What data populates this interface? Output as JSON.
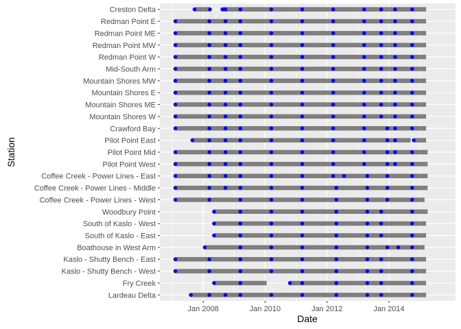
{
  "chart_data": {
    "type": "timeline",
    "xlabel": "Date",
    "ylabel": "Station",
    "x_ticks": [
      "Jan 2008",
      "Jan 2010",
      "Jan 2012",
      "Jan 2014"
    ],
    "x_tick_values": [
      2008.0,
      2010.0,
      2012.0,
      2014.0
    ],
    "xlim": [
      2006.6,
      2016.15
    ],
    "grid": true,
    "legend": "none",
    "colors": {
      "panel": "#ebebeb",
      "grid": "#ffffff",
      "segment": "#7f7f7f",
      "point": "#0000ff",
      "tick": "#4d4d4d"
    },
    "stations": [
      {
        "name": "Creston Delta",
        "segments": [
          [
            2007.72,
            2008.22
          ],
          [
            2008.62,
            2015.2
          ]
        ],
        "points": [
          2007.72,
          2008.22,
          2008.62,
          2008.72,
          2009.2,
          2010.2,
          2011.2,
          2012.2,
          2013.2,
          2013.75,
          2014.2,
          2014.75
        ]
      },
      {
        "name": "Redman Point E",
        "segments": [
          [
            2007.1,
            2015.2
          ]
        ],
        "points": [
          2007.1,
          2008.2,
          2008.72,
          2009.2,
          2010.2,
          2011.2,
          2012.2,
          2013.2,
          2013.75,
          2014.2,
          2014.75
        ]
      },
      {
        "name": "Redman Point ME",
        "segments": [
          [
            2007.1,
            2015.2
          ]
        ],
        "points": [
          2007.1,
          2008.2,
          2008.72,
          2009.2,
          2010.2,
          2011.2,
          2012.2,
          2013.2,
          2013.75,
          2014.2,
          2014.75
        ]
      },
      {
        "name": "Redman Point MW",
        "segments": [
          [
            2007.1,
            2015.2
          ]
        ],
        "points": [
          2007.1,
          2008.2,
          2008.72,
          2009.2,
          2010.2,
          2011.2,
          2012.2,
          2013.2,
          2013.75,
          2014.2,
          2014.75
        ]
      },
      {
        "name": "Redman Point W",
        "segments": [
          [
            2007.1,
            2015.2
          ]
        ],
        "points": [
          2007.1,
          2008.2,
          2008.72,
          2009.2,
          2010.2,
          2011.2,
          2012.2,
          2013.2,
          2013.75,
          2014.2,
          2014.75
        ]
      },
      {
        "name": "Mid-South Arm",
        "segments": [
          [
            2007.1,
            2015.2
          ]
        ],
        "points": [
          2007.1,
          2008.2,
          2008.72,
          2009.2,
          2010.2,
          2011.2,
          2012.2,
          2013.2,
          2013.75,
          2014.2,
          2014.75
        ]
      },
      {
        "name": "Mountain Shores MW",
        "segments": [
          [
            2007.1,
            2015.2
          ]
        ],
        "points": [
          2007.1,
          2008.2,
          2008.72,
          2009.2,
          2010.2,
          2011.2,
          2012.2,
          2013.2,
          2013.75,
          2014.2,
          2014.75
        ]
      },
      {
        "name": "Mountain Shores E",
        "segments": [
          [
            2007.1,
            2015.2
          ]
        ],
        "points": [
          2007.1,
          2008.2,
          2008.72,
          2009.2,
          2010.2,
          2011.2,
          2012.2,
          2013.2,
          2013.75,
          2014.2,
          2014.75
        ]
      },
      {
        "name": "Mountain Shores ME",
        "segments": [
          [
            2007.1,
            2015.2
          ]
        ],
        "points": [
          2007.1,
          2008.2,
          2008.72,
          2009.2,
          2010.2,
          2011.2,
          2012.2,
          2013.2,
          2013.75,
          2014.2,
          2014.75
        ]
      },
      {
        "name": "Mountain Shores W",
        "segments": [
          [
            2007.1,
            2015.2
          ]
        ],
        "points": [
          2007.1,
          2008.2,
          2008.72,
          2009.2,
          2010.2,
          2011.2,
          2012.2,
          2013.2,
          2013.75,
          2014.2,
          2014.75
        ]
      },
      {
        "name": "Crawford Bay",
        "segments": [
          [
            2007.1,
            2015.2
          ]
        ],
        "points": [
          2007.1,
          2008.2,
          2008.72,
          2009.2,
          2010.2,
          2011.2,
          2012.2,
          2013.2,
          2013.95,
          2014.2,
          2014.75
        ]
      },
      {
        "name": "Pilot Point East",
        "segments": [
          [
            2007.65,
            2014.7
          ],
          [
            2014.8,
            2015.2
          ]
        ],
        "points": [
          2007.65,
          2008.2,
          2008.72,
          2009.2,
          2010.2,
          2011.2,
          2012.2,
          2013.2,
          2013.95,
          2014.2,
          2014.8
        ]
      },
      {
        "name": "Pilot Point Mid",
        "segments": [
          [
            2007.1,
            2015.25
          ]
        ],
        "points": [
          2007.1,
          2008.2,
          2008.72,
          2009.2,
          2010.2,
          2011.2,
          2012.2,
          2013.2,
          2013.95,
          2014.2,
          2014.75
        ]
      },
      {
        "name": "Pilot Point West",
        "segments": [
          [
            2007.1,
            2015.25
          ]
        ],
        "points": [
          2007.1,
          2008.2,
          2008.72,
          2009.2,
          2010.2,
          2011.2,
          2012.2,
          2013.2,
          2013.95,
          2014.2,
          2014.75
        ]
      },
      {
        "name": "Coffee Creek - Power Lines - East",
        "segments": [
          [
            2007.1,
            2015.25
          ]
        ],
        "points": [
          2007.1,
          2008.2,
          2008.72,
          2009.2,
          2010.2,
          2011.2,
          2012.2,
          2012.55,
          2013.3,
          2013.95,
          2014.75
        ]
      },
      {
        "name": "Coffee Creek - Power Lines - Middle",
        "segments": [
          [
            2007.1,
            2015.25
          ]
        ],
        "points": [
          2007.1,
          2008.2,
          2008.72,
          2009.2,
          2010.2,
          2011.2,
          2012.3,
          2013.3,
          2013.95,
          2014.75
        ]
      },
      {
        "name": "Coffee Creek - Power Lines - West",
        "segments": [
          [
            2007.1,
            2015.15
          ]
        ],
        "points": [
          2007.1,
          2008.2,
          2009.2,
          2010.2,
          2011.2,
          2012.3,
          2013.3,
          2013.95,
          2014.75
        ]
      },
      {
        "name": "Woodbury Point",
        "segments": [
          [
            2008.35,
            2015.25
          ]
        ],
        "points": [
          2008.35,
          2009.2,
          2010.2,
          2011.2,
          2012.3,
          2013.3,
          2013.75,
          2014.75
        ]
      },
      {
        "name": "South of Kaslo - West",
        "segments": [
          [
            2008.35,
            2015.2
          ]
        ],
        "points": [
          2008.35,
          2009.2,
          2010.2,
          2011.2,
          2012.3,
          2013.3,
          2013.75,
          2014.75
        ]
      },
      {
        "name": "South of Kaslo - East",
        "segments": [
          [
            2008.35,
            2015.2
          ]
        ],
        "points": [
          2008.35,
          2009.2,
          2010.2,
          2011.2,
          2012.3,
          2013.3,
          2013.75,
          2014.75
        ]
      },
      {
        "name": "Boathouse in West Arm",
        "segments": [
          [
            2008.05,
            2015.15
          ]
        ],
        "points": [
          2008.05,
          2009.2,
          2010.2,
          2011.2,
          2012.3,
          2013.3,
          2013.95,
          2014.3,
          2014.75
        ]
      },
      {
        "name": "Kaslo - Shutty Bench - East",
        "segments": [
          [
            2007.1,
            2015.2
          ]
        ],
        "points": [
          2007.1,
          2008.2,
          2009.2,
          2010.2,
          2011.2,
          2012.3,
          2013.3,
          2013.75,
          2014.75
        ]
      },
      {
        "name": "Kaslo - Shutty Bench - West",
        "segments": [
          [
            2007.1,
            2015.2
          ]
        ],
        "points": [
          2007.1,
          2008.2,
          2009.2,
          2010.2,
          2011.2,
          2012.3,
          2013.3,
          2013.75,
          2014.75
        ]
      },
      {
        "name": "Fry Creek",
        "segments": [
          [
            2008.35,
            2010.05
          ],
          [
            2010.8,
            2015.2
          ]
        ],
        "points": [
          2008.35,
          2009.2,
          2010.8,
          2011.2,
          2012.3,
          2013.3,
          2013.75,
          2014.75
        ]
      },
      {
        "name": "Lardeau Delta",
        "segments": [
          [
            2007.6,
            2015.2
          ]
        ],
        "points": [
          2007.6,
          2008.2,
          2008.72,
          2009.2,
          2010.2,
          2011.2,
          2012.3,
          2013.3,
          2013.75,
          2014.75
        ]
      }
    ]
  }
}
